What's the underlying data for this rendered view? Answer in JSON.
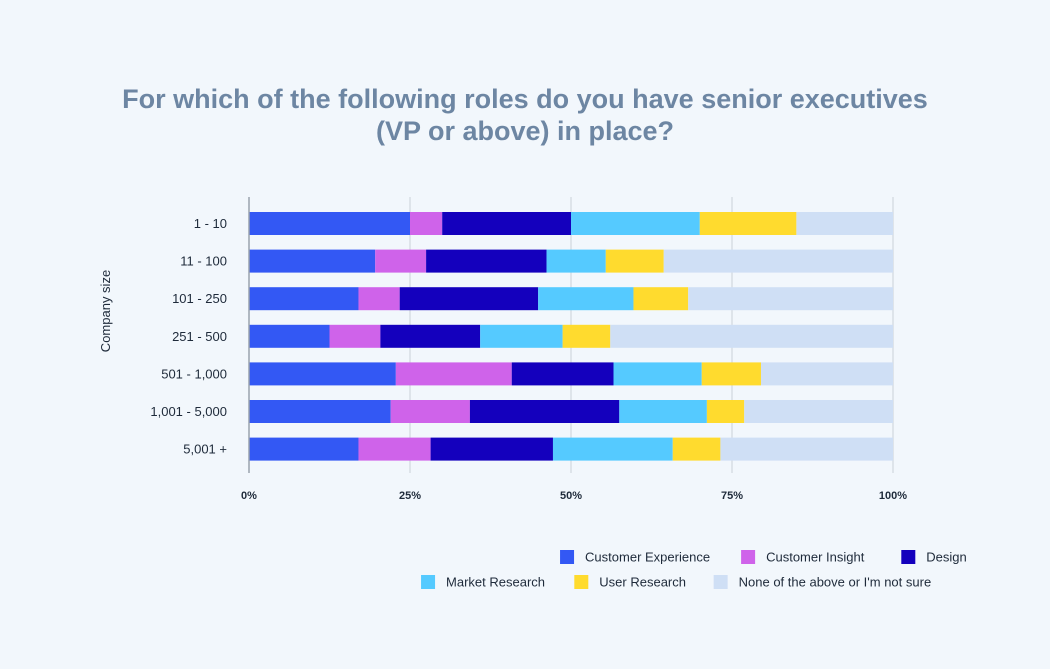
{
  "chart_data": {
    "type": "bar",
    "orientation": "horizontal",
    "stacked": true,
    "title_lines": [
      "For which of the following roles do you have senior executives",
      "(VP or above) in place?"
    ],
    "ylabel": "Company size",
    "xlabel": "",
    "xlim": [
      0,
      100
    ],
    "x_ticks": [
      "0%",
      "25%",
      "50%",
      "75%",
      "100%"
    ],
    "grid": true,
    "legend_position": "bottom-right",
    "categories": [
      "1 - 10",
      "11 - 100",
      "101 - 250",
      "251 - 500",
      "501 - 1,000",
      "1,001 - 5,000",
      "5,001 +"
    ],
    "series": [
      {
        "name": "Customer Experience",
        "color": "#3358f4",
        "values": [
          25,
          19.6,
          17,
          12.5,
          22.8,
          22,
          17
        ]
      },
      {
        "name": "Customer Insight",
        "color": "#cf63ea",
        "values": [
          5,
          7.9,
          6.4,
          7.9,
          18,
          12.3,
          11.2
        ]
      },
      {
        "name": "Design",
        "color": "#1400bd",
        "values": [
          20,
          18.7,
          21.5,
          15.5,
          15.8,
          23.2,
          19
        ]
      },
      {
        "name": "Market Research",
        "color": "#55caff",
        "values": [
          20,
          9.2,
          14.8,
          12.8,
          13.7,
          13.6,
          18.6
        ]
      },
      {
        "name": "User Research",
        "color": "#ffdb2e",
        "values": [
          15,
          9,
          8.5,
          7.4,
          9.2,
          5.8,
          7.4
        ]
      },
      {
        "name": "None of the above or I'm not sure",
        "color": "#cfdff5",
        "values": [
          15,
          35.6,
          31.8,
          43.9,
          20.5,
          23.1,
          26.8
        ]
      }
    ]
  }
}
